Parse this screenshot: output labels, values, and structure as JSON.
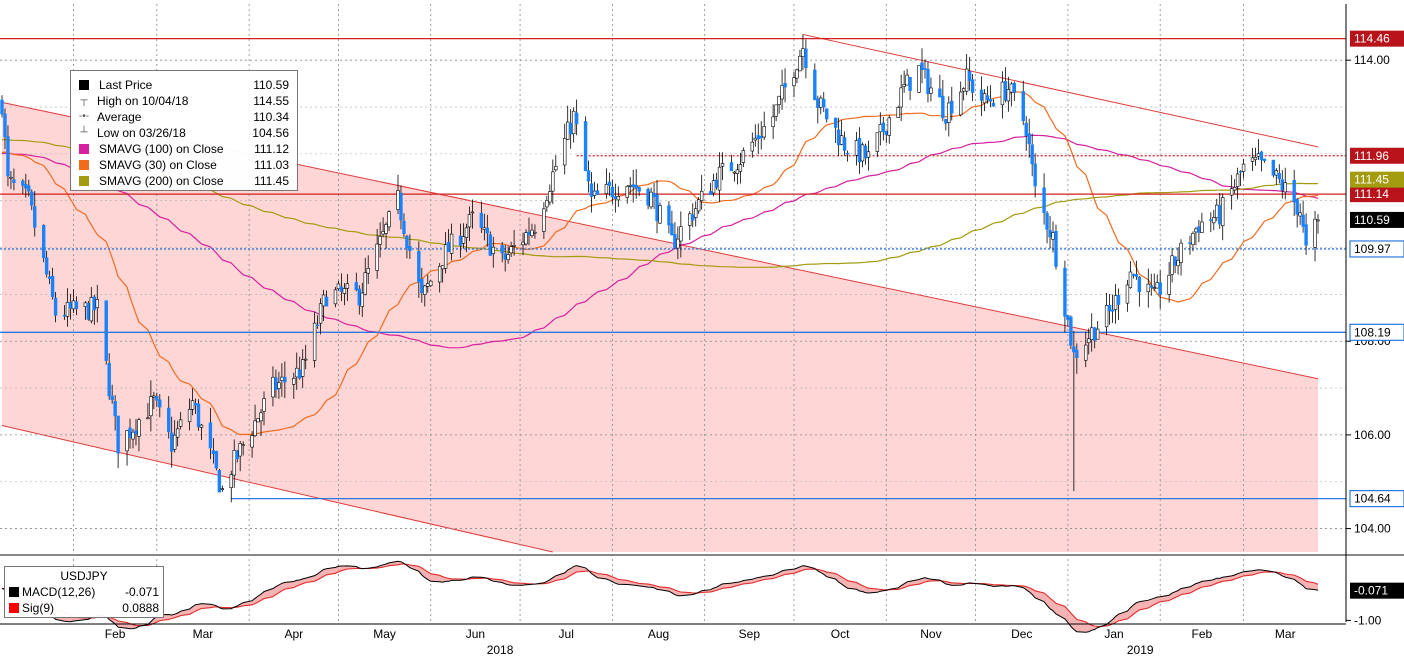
{
  "chart_data": {
    "type": "candlestick",
    "symbol": "USDJPY",
    "x_axis": {
      "months": [
        {
          "label": "Feb",
          "date": "2018-02-01"
        },
        {
          "label": "Mar",
          "date": "2018-03-01"
        },
        {
          "label": "Apr",
          "date": "2018-04-01"
        },
        {
          "label": "May",
          "date": "2018-05-01"
        },
        {
          "label": "Jun",
          "date": "2018-06-01"
        },
        {
          "label": "Jul",
          "date": "2018-07-01"
        },
        {
          "label": "Aug",
          "date": "2018-08-01"
        },
        {
          "label": "Sep",
          "date": "2018-09-01"
        },
        {
          "label": "Oct",
          "date": "2018-10-01"
        },
        {
          "label": "Nov",
          "date": "2018-11-01"
        },
        {
          "label": "Dec",
          "date": "2018-12-01"
        },
        {
          "label": "Jan",
          "date": "2019-01-01"
        },
        {
          "label": "Feb",
          "date": "2019-02-01"
        },
        {
          "label": "Mar",
          "date": "2019-03-01"
        }
      ],
      "years": [
        {
          "label": "2018",
          "date": "2018-07-01"
        },
        {
          "label": "2019",
          "date": "2019-02-01"
        }
      ],
      "range": [
        "2018-01-08",
        "2019-03-26"
      ],
      "grid": true
    },
    "price_axis": {
      "ylim": [
        103.5,
        115.2
      ],
      "ticks": [
        {
          "value": 114.0,
          "label": "114.00"
        },
        {
          "value": 108.0,
          "label": "108.00"
        },
        {
          "value": 106.0,
          "label": "106.00"
        },
        {
          "value": 104.0,
          "label": "104.00"
        }
      ],
      "grid": true
    },
    "macd_axis": {
      "ylim": [
        -1.05,
        0.95
      ],
      "ticks": [
        {
          "value": -1.0,
          "label": "-1.00"
        }
      ]
    },
    "anchors": [
      {
        "date": "2018-01-08",
        "close": 113.1
      },
      {
        "date": "2018-01-10",
        "close": 111.4
      },
      {
        "date": "2018-01-17",
        "close": 111.0
      },
      {
        "date": "2018-01-26",
        "close": 108.6
      },
      {
        "date": "2018-02-09",
        "close": 108.7
      },
      {
        "date": "2018-02-16",
        "close": 105.8
      },
      {
        "date": "2018-02-28",
        "close": 106.7
      },
      {
        "date": "2018-03-06",
        "close": 105.8
      },
      {
        "date": "2018-03-13",
        "close": 106.7
      },
      {
        "date": "2018-03-23",
        "close": 104.8
      },
      {
        "date": "2018-03-26",
        "close": 105.3
      },
      {
        "date": "2018-04-09",
        "close": 107.0
      },
      {
        "date": "2018-04-19",
        "close": 107.4
      },
      {
        "date": "2018-04-27",
        "close": 109.0
      },
      {
        "date": "2018-05-08",
        "close": 109.0
      },
      {
        "date": "2018-05-21",
        "close": 111.0
      },
      {
        "date": "2018-05-29",
        "close": 108.9
      },
      {
        "date": "2018-06-05",
        "close": 109.8
      },
      {
        "date": "2018-06-15",
        "close": 110.6
      },
      {
        "date": "2018-06-25",
        "close": 109.7
      },
      {
        "date": "2018-07-06",
        "close": 110.5
      },
      {
        "date": "2018-07-19",
        "close": 112.8
      },
      {
        "date": "2018-07-25",
        "close": 111.0
      },
      {
        "date": "2018-08-06",
        "close": 111.4
      },
      {
        "date": "2018-08-14",
        "close": 111.1
      },
      {
        "date": "2018-08-21",
        "close": 110.1
      },
      {
        "date": "2018-09-05",
        "close": 111.5
      },
      {
        "date": "2018-09-13",
        "close": 111.9
      },
      {
        "date": "2018-09-24",
        "close": 112.8
      },
      {
        "date": "2018-10-04",
        "close": 114.3
      },
      {
        "date": "2018-10-09",
        "close": 113.1
      },
      {
        "date": "2018-10-18",
        "close": 112.2
      },
      {
        "date": "2018-10-26",
        "close": 111.9
      },
      {
        "date": "2018-11-07",
        "close": 113.4
      },
      {
        "date": "2018-11-12",
        "close": 113.8
      },
      {
        "date": "2018-11-21",
        "close": 112.9
      },
      {
        "date": "2018-11-28",
        "close": 113.6
      },
      {
        "date": "2018-12-04",
        "close": 113.1
      },
      {
        "date": "2018-12-12",
        "close": 113.4
      },
      {
        "date": "2018-12-18",
        "close": 112.6
      },
      {
        "date": "2018-12-21",
        "close": 111.2
      },
      {
        "date": "2018-12-27",
        "close": 110.2
      },
      {
        "date": "2019-01-03",
        "close": 107.7
      },
      {
        "date": "2019-01-09",
        "close": 108.2
      },
      {
        "date": "2019-01-15",
        "close": 108.6
      },
      {
        "date": "2019-01-22",
        "close": 109.5
      },
      {
        "date": "2019-01-30",
        "close": 108.9
      },
      {
        "date": "2019-02-06",
        "close": 109.7
      },
      {
        "date": "2019-02-14",
        "close": 110.5
      },
      {
        "date": "2019-02-21",
        "close": 110.7
      },
      {
        "date": "2019-03-01",
        "close": 111.7
      },
      {
        "date": "2019-03-06",
        "close": 111.8
      },
      {
        "date": "2019-03-13",
        "close": 111.4
      },
      {
        "date": "2019-03-20",
        "close": 110.8
      },
      {
        "date": "2019-03-22",
        "close": 109.9
      },
      {
        "date": "2019-03-26",
        "close": 110.59
      }
    ],
    "lows_override": [
      {
        "date": "2018-03-26",
        "low": 104.56
      },
      {
        "date": "2019-01-03",
        "low": 104.8
      }
    ],
    "highs_override": [
      {
        "date": "2018-10-04",
        "high": 114.55
      }
    ],
    "horizontal_lines": [
      {
        "value": 114.46,
        "label": "114.46",
        "color": "#d31f1f",
        "style": "solid"
      },
      {
        "value": 111.96,
        "label": "111.96",
        "color": "#d31f1f",
        "style": "dotted",
        "from": "2018-07-20"
      },
      {
        "value": 111.14,
        "label": "111.14",
        "color": "#d31f1f",
        "style": "solid"
      },
      {
        "value": 109.97,
        "label": "109.97",
        "color": "#2b79e0",
        "style": "dotted"
      },
      {
        "value": 108.19,
        "label": "108.19",
        "color": "#2b79e0",
        "style": "solid"
      },
      {
        "value": 104.64,
        "label": "104.64",
        "color": "#2b79e0",
        "style": "solid",
        "from": "2018-03-26"
      }
    ],
    "price_markers": [
      {
        "value": 111.45,
        "label": "111.45",
        "color": "#a39b10"
      },
      {
        "value": 110.59,
        "label": "110.59",
        "color": "#000000"
      }
    ],
    "macd_markers": [
      {
        "value": -0.071,
        "label": "-0.071",
        "color": "#000000"
      }
    ],
    "channels": [
      {
        "name": "down-channel",
        "upper": [
          [
            "2018-01-08",
            113.1
          ],
          [
            "2019-03-26",
            107.2
          ]
        ],
        "lower": [
          [
            "2018-01-08",
            106.2
          ],
          [
            "2018-07-12",
            103.5
          ]
        ],
        "fill": "#ffd6d6"
      },
      {
        "name": "resistance",
        "points": [
          [
            "2018-10-04",
            114.55
          ],
          [
            "2019-03-26",
            112.15
          ]
        ]
      }
    ],
    "moving_averages": [
      {
        "name": "SMAVG (100)  on Close",
        "value": 111.12,
        "color": "#d6209f",
        "window": 100
      },
      {
        "name": "SMAVG (30)  on Close",
        "value": 111.03,
        "color": "#f26b1d",
        "window": 30
      },
      {
        "name": "SMAVG (200)  on Close",
        "value": 111.45,
        "color": "#a39b10",
        "window": 200
      }
    ],
    "colors": {
      "up": "#000000",
      "down": "#1a82ff",
      "macd": "#000000",
      "signal": "#e22b2b",
      "macd_fill": "#f3a0a0",
      "axis_text": "#000000"
    }
  },
  "legend": {
    "last_price": {
      "label": "Last Price",
      "value": "110.59"
    },
    "high": {
      "label": "High on 10/04/18",
      "value": "114.55"
    },
    "average": {
      "label": "Average",
      "value": "110.34"
    },
    "low": {
      "label": "Low on 03/26/18",
      "value": "104.56"
    },
    "sma100": {
      "label": "SMAVG (100)  on Close",
      "value": "111.12",
      "color": "#d6209f"
    },
    "sma30": {
      "label": "SMAVG (30)  on Close",
      "value": "111.03",
      "color": "#f26b1d"
    },
    "sma200": {
      "label": "SMAVG (200)  on Close",
      "value": "111.45",
      "color": "#a39b10"
    }
  },
  "macd_legend": {
    "symbol": "USDJPY",
    "macd": {
      "label": "MACD(12,26)",
      "value": "-0.071",
      "color": "#000000"
    },
    "signal": {
      "label": "Sig(9)",
      "value": "0.0888",
      "color": "#ff0000"
    }
  }
}
